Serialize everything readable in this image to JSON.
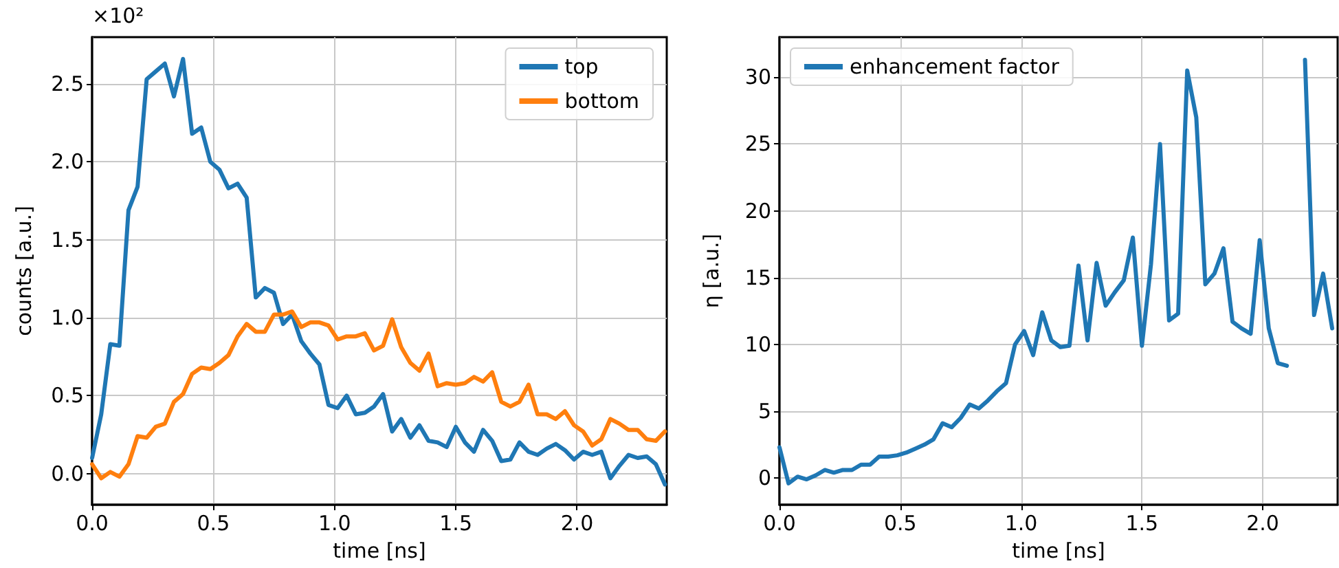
{
  "chart_data": [
    {
      "type": "line",
      "xlabel": "time [ns]",
      "ylabel": "counts [a.u.]",
      "annotations": [
        "×10²"
      ],
      "x": [
        0,
        0.0375,
        0.075,
        0.1125,
        0.15,
        0.1875,
        0.225,
        0.2625,
        0.3,
        0.3375,
        0.375,
        0.4125,
        0.45,
        0.4875,
        0.525,
        0.5625,
        0.6,
        0.6375,
        0.675,
        0.7125,
        0.75,
        0.7875,
        0.825,
        0.8625,
        0.9,
        0.9375,
        0.975,
        1.0125,
        1.05,
        1.0875,
        1.125,
        1.1625,
        1.2,
        1.2375,
        1.275,
        1.3125,
        1.35,
        1.3875,
        1.425,
        1.4625,
        1.5,
        1.5375,
        1.575,
        1.6125,
        1.65,
        1.6875,
        1.725,
        1.7625,
        1.8,
        1.8375,
        1.875,
        1.9125,
        1.95,
        1.9875,
        2.025,
        2.0625,
        2.1,
        2.1375,
        2.175,
        2.2125,
        2.25,
        2.2875,
        2.325,
        2.3625
      ],
      "series": [
        {
          "name": "top",
          "color": "#1f77b4",
          "values": [
            0.1,
            0.38,
            0.83,
            0.82,
            1.69,
            1.84,
            2.53,
            2.58,
            2.63,
            2.42,
            2.66,
            2.18,
            2.22,
            2.0,
            1.95,
            1.83,
            1.86,
            1.77,
            1.13,
            1.19,
            1.16,
            0.96,
            1.02,
            0.85,
            0.77,
            0.7,
            0.44,
            0.42,
            0.5,
            0.38,
            0.39,
            0.43,
            0.51,
            0.27,
            0.35,
            0.23,
            0.31,
            0.21,
            0.2,
            0.17,
            0.3,
            0.2,
            0.14,
            0.28,
            0.21,
            0.08,
            0.09,
            0.2,
            0.14,
            0.12,
            0.16,
            0.19,
            0.15,
            0.09,
            0.14,
            0.12,
            0.14,
            -0.03,
            0.05,
            0.12,
            0.1,
            0.11,
            0.06,
            -0.07
          ]
        },
        {
          "name": "bottom",
          "color": "#ff7f0e",
          "values": [
            0.06,
            -0.03,
            0.01,
            -0.02,
            0.06,
            0.24,
            0.23,
            0.3,
            0.32,
            0.46,
            0.51,
            0.64,
            0.68,
            0.67,
            0.71,
            0.76,
            0.88,
            0.96,
            0.91,
            0.91,
            1.02,
            1.02,
            1.04,
            0.94,
            0.97,
            0.97,
            0.95,
            0.86,
            0.88,
            0.88,
            0.9,
            0.79,
            0.82,
            0.99,
            0.81,
            0.71,
            0.66,
            0.77,
            0.56,
            0.58,
            0.57,
            0.58,
            0.62,
            0.59,
            0.65,
            0.46,
            0.43,
            0.46,
            0.57,
            0.38,
            0.38,
            0.35,
            0.4,
            0.31,
            0.27,
            0.18,
            0.22,
            0.35,
            0.32,
            0.28,
            0.28,
            0.22,
            0.21,
            0.27
          ]
        }
      ],
      "xlim": [
        0,
        2.37
      ],
      "xticks": [
        {
          "value": 0,
          "label": "0.0"
        },
        {
          "value": 0.5,
          "label": "0.5"
        },
        {
          "value": 1,
          "label": "1.0"
        },
        {
          "value": 1.5,
          "label": "1.5"
        },
        {
          "value": 2,
          "label": "2.0"
        }
      ],
      "ylim": [
        -0.2,
        2.8
      ],
      "yticks": [
        {
          "value": 0,
          "label": "0.0"
        },
        {
          "value": 0.5,
          "label": "0.5"
        },
        {
          "value": 1,
          "label": "1.0"
        },
        {
          "value": 1.5,
          "label": "1.5"
        },
        {
          "value": 2,
          "label": "2.0"
        },
        {
          "value": 2.5,
          "label": "2.5"
        }
      ],
      "grid": true,
      "legend": "top right",
      "line_style": "solid"
    },
    {
      "type": "line",
      "xlabel": "time [ns]",
      "ylabel": "η [a.u.]",
      "x": [
        0,
        0.0375,
        0.075,
        0.1125,
        0.15,
        0.1875,
        0.225,
        0.2625,
        0.3,
        0.3375,
        0.375,
        0.4125,
        0.45,
        0.4875,
        0.525,
        0.5625,
        0.6,
        0.6375,
        0.675,
        0.7125,
        0.75,
        0.7875,
        0.825,
        0.8625,
        0.9,
        0.9375,
        0.975,
        1.0125,
        1.05,
        1.0875,
        1.125,
        1.1625,
        1.2,
        1.2375,
        1.275,
        1.3125,
        1.35,
        1.3875,
        1.425,
        1.4625,
        1.5,
        1.5375,
        1.575,
        1.6125,
        1.65,
        1.6875,
        1.725,
        1.7625,
        1.8,
        1.8375,
        1.875,
        1.9125,
        1.95,
        1.9875,
        2.025,
        2.0625,
        2.1,
        2.1375,
        2.175,
        2.2125,
        2.25,
        2.2875
      ],
      "series": [
        {
          "name": "enhancement factor",
          "color": "#1f77b4",
          "values": [
            2.3,
            -0.4,
            0.1,
            -0.1,
            0.2,
            0.6,
            0.4,
            0.6,
            0.6,
            1.0,
            1.0,
            1.6,
            1.6,
            1.7,
            1.9,
            2.2,
            2.5,
            2.9,
            4.1,
            3.8,
            4.5,
            5.5,
            5.2,
            5.8,
            6.5,
            7.1,
            10.0,
            11.0,
            9.2,
            12.4,
            10.3,
            9.8,
            9.9,
            15.9,
            10.3,
            16.1,
            12.9,
            13.9,
            14.8,
            18.0,
            9.9,
            16.0,
            25.0,
            11.8,
            12.3,
            30.5,
            27.0,
            14.5,
            15.3,
            17.2,
            11.7,
            11.2,
            10.8,
            17.8,
            11.2,
            8.6,
            8.4,
            null,
            31.3,
            12.2,
            15.3,
            11.2
          ]
        }
      ],
      "xlim": [
        0,
        2.31
      ],
      "xticks": [
        {
          "value": 0,
          "label": "0.0"
        },
        {
          "value": 0.5,
          "label": "0.5"
        },
        {
          "value": 1,
          "label": "1.0"
        },
        {
          "value": 1.5,
          "label": "1.5"
        },
        {
          "value": 2,
          "label": "2.0"
        }
      ],
      "ylim": [
        -2,
        33
      ],
      "yticks": [
        0,
        5,
        10,
        15,
        20,
        25,
        30
      ],
      "grid": true,
      "legend": "top left",
      "line_style": "solid"
    }
  ]
}
